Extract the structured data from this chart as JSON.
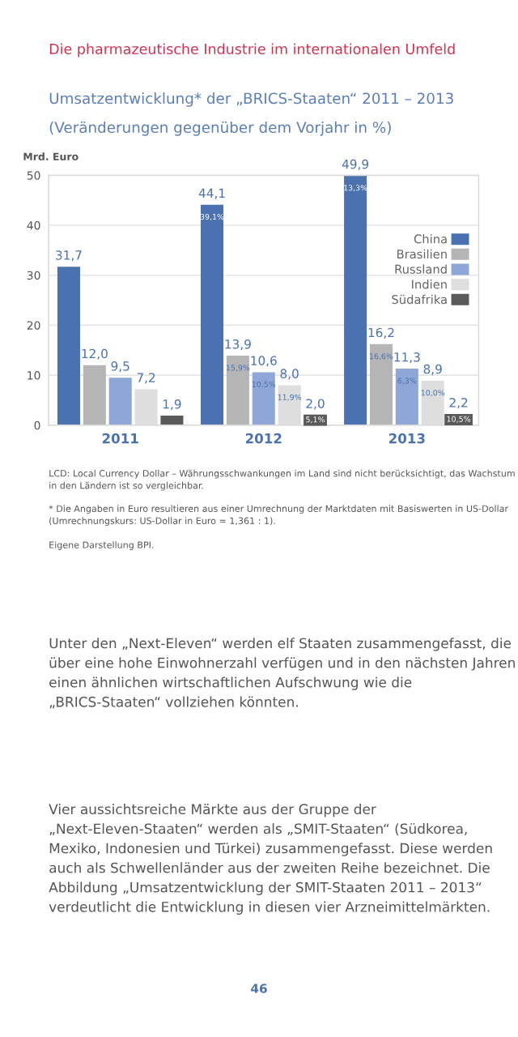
{
  "chart_data": {
    "type": "bar",
    "title": "Umsatzentwicklung* der „BRICS-Staaten“ 2011 – 2013",
    "subtitle": "(Veränderungen gegenüber dem Vorjahr in %)",
    "ylabel": "Mrd. Euro",
    "categories": [
      "2011",
      "2012",
      "2013"
    ],
    "series": [
      {
        "name": "China",
        "color": "#4a72b0",
        "values": [
          31.7,
          44.1,
          49.9
        ],
        "value_labels": [
          "31,7",
          "44,1",
          "49,9"
        ]
      },
      {
        "name": "Brasilien",
        "color": "#b5b5b5",
        "values": [
          12.0,
          13.9,
          16.2
        ],
        "value_labels": [
          "12,0",
          "13,9",
          "16,2"
        ]
      },
      {
        "name": "Russland",
        "color": "#8fa7d6",
        "values": [
          9.5,
          10.6,
          11.3
        ],
        "value_labels": [
          "9,5",
          "10,6",
          "11,3"
        ]
      },
      {
        "name": "Indien",
        "color": "#dedede",
        "values": [
          7.2,
          8.0,
          8.9
        ],
        "value_labels": [
          "7,2",
          "8,0",
          "8,9"
        ]
      },
      {
        "name": "Südafrika",
        "color": "#5a5a5a",
        "values": [
          1.9,
          2.0,
          2.2
        ],
        "value_labels": [
          "1,9",
          "2,0",
          "2,2"
        ]
      }
    ],
    "ylim": [
      0,
      50
    ],
    "yticks": [
      0,
      10,
      20,
      30,
      40,
      50
    ],
    "grid": "y",
    "legend": "right",
    "annotations": [
      "Die pharmazeutische Industrie im internationalen Umfeld",
      "LCD: Local Currency Dollar – Währungsschwankungen im Land sind nicht berücksichtigt, das Wachstum in den Ländern ist so vergleichbar.",
      "* Die Angaben in Euro resultieren aus einer Umrechnung der Marktdaten mit Basiswerten in US-Dollar (Umrechnungskurs: US-Dollar in Euro = 1,361 : 1).",
      "Eigene Darstellung BPI.",
      "Unter den „Next-Eleven“ werden elf Staaten zusammengefasst, die über eine hohe Einwohnerzahl verfügen und in den nächsten Jahren einen ähnlichen wirtschaftlichen Aufschwung wie die „BRICS-Staaten“ vollziehen könnten.",
      "Vier aussichtsreiche Märkte aus der Gruppe der „Next-Eleven-Staaten“ werden als „SMIT-Staaten“ (Südkorea, Mexiko, Indonesien und Türkei) zusammengefasst. Diese werden auch als Schwellenländer aus der zweiten Reihe bezeichnet. Die Abbildung „Umsatzentwicklung der SMIT-Staaten 2011 – 2013“ verdeutlicht die Entwicklung in diesen vier Arzneimittelmärkten.",
      "46",
      "39,1%",
      "15,9%",
      "10,5%",
      "11,9%",
      "5,1%",
      "13,3%",
      "16,6%",
      "6,3%",
      "10,0%",
      "10,5%"
    ]
  }
}
